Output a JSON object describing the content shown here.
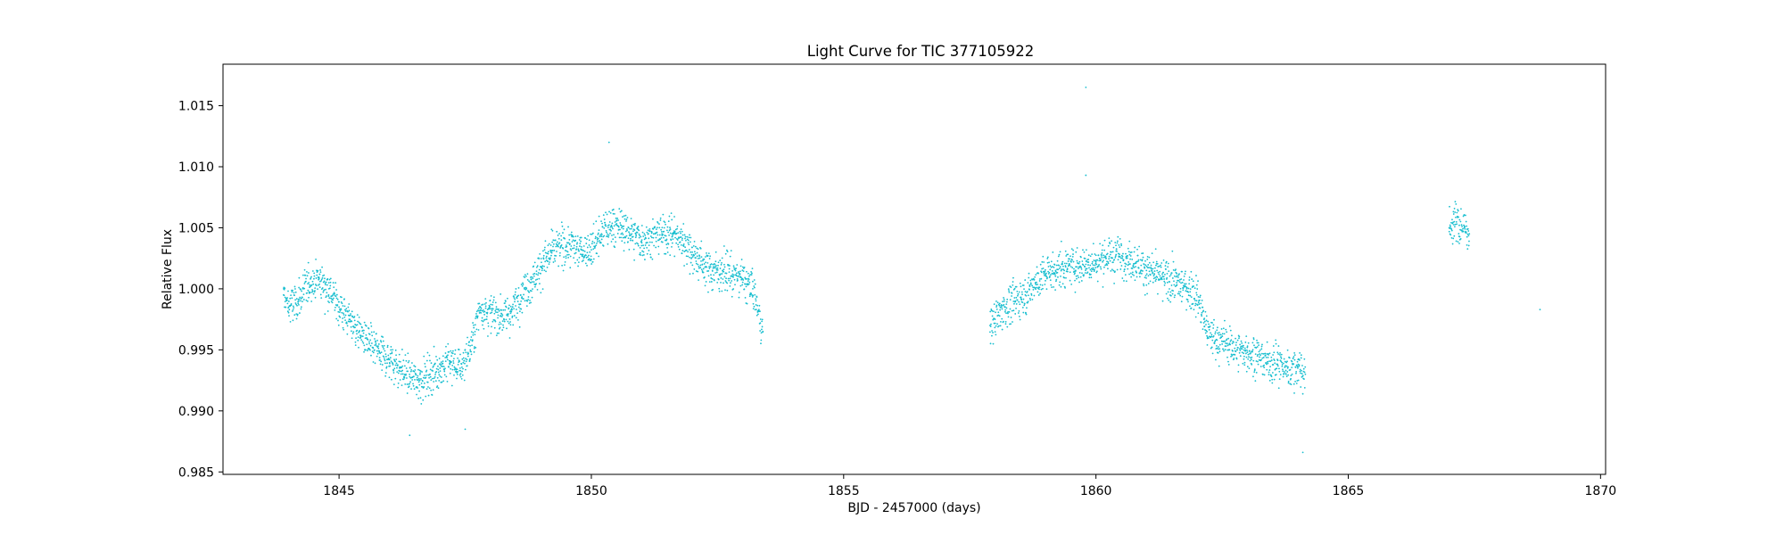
{
  "chart_data": {
    "type": "scatter",
    "title": "Light Curve for TIC 377105922",
    "xlabel": "BJD - 2457000 (days)",
    "ylabel": "Relative Flux",
    "xlim": [
      1842.7,
      1870.1
    ],
    "ylim": [
      0.9848,
      1.0184
    ],
    "xticks": [
      1845,
      1850,
      1855,
      1860,
      1865,
      1870
    ],
    "xtick_labels": [
      "1845",
      "1850",
      "1855",
      "1860",
      "1865",
      "1870"
    ],
    "yticks": [
      0.985,
      0.99,
      0.995,
      1.0,
      1.005,
      1.01,
      1.015
    ],
    "ytick_labels": [
      "0.985",
      "0.990",
      "0.995",
      "1.000",
      "1.005",
      "1.010",
      "1.015"
    ],
    "grid": false,
    "legend": "none",
    "marker_color": "#17becf",
    "series": [
      {
        "points": [
          [
            1843.9,
            0.9995
          ],
          [
            1844.0,
            0.9985
          ],
          [
            1844.2,
            0.999
          ],
          [
            1844.4,
            1.0005
          ],
          [
            1844.6,
            1.0008
          ],
          [
            1844.8,
            1.0
          ],
          [
            1845.0,
            0.9985
          ],
          [
            1845.2,
            0.9975
          ],
          [
            1845.4,
            0.9965
          ],
          [
            1845.6,
            0.9955
          ],
          [
            1845.8,
            0.9948
          ],
          [
            1846.0,
            0.9942
          ],
          [
            1846.2,
            0.9935
          ],
          [
            1846.4,
            0.9928
          ],
          [
            1846.6,
            0.9925
          ],
          [
            1846.8,
            0.993
          ],
          [
            1847.0,
            0.9935
          ],
          [
            1847.2,
            0.994
          ],
          [
            1847.4,
            0.9935
          ],
          [
            1847.6,
            0.995
          ],
          [
            1847.8,
            0.9985
          ],
          [
            1848.0,
            0.998
          ],
          [
            1848.2,
            0.9978
          ],
          [
            1848.4,
            0.998
          ],
          [
            1848.6,
            0.9995
          ],
          [
            1848.8,
            1.0005
          ],
          [
            1849.0,
            1.0018
          ],
          [
            1849.2,
            1.003
          ],
          [
            1849.4,
            1.0035
          ],
          [
            1849.6,
            1.0035
          ],
          [
            1849.8,
            1.0032
          ],
          [
            1850.0,
            1.0032
          ],
          [
            1850.2,
            1.0045
          ],
          [
            1850.4,
            1.0052
          ],
          [
            1850.6,
            1.005
          ],
          [
            1850.8,
            1.0045
          ],
          [
            1851.0,
            1.004
          ],
          [
            1851.2,
            1.0042
          ],
          [
            1851.4,
            1.0045
          ],
          [
            1851.6,
            1.0045
          ],
          [
            1851.8,
            1.004
          ],
          [
            1852.0,
            1.003
          ],
          [
            1852.2,
            1.002
          ],
          [
            1852.4,
            1.0015
          ],
          [
            1852.6,
            1.0015
          ],
          [
            1852.8,
            1.0012
          ],
          [
            1853.0,
            1.0008
          ],
          [
            1853.2,
            1.0
          ],
          [
            1853.4,
            0.9965
          ],
          [
            1857.9,
            0.997
          ],
          [
            1858.0,
            0.9975
          ],
          [
            1858.2,
            0.9985
          ],
          [
            1858.4,
            0.999
          ],
          [
            1858.6,
            0.9995
          ],
          [
            1858.8,
            1.0005
          ],
          [
            1859.0,
            1.0012
          ],
          [
            1859.2,
            1.0015
          ],
          [
            1859.4,
            1.0018
          ],
          [
            1859.6,
            1.0018
          ],
          [
            1859.8,
            1.002
          ],
          [
            1860.0,
            1.0022
          ],
          [
            1860.2,
            1.0025
          ],
          [
            1860.4,
            1.0028
          ],
          [
            1860.6,
            1.0025
          ],
          [
            1860.8,
            1.0022
          ],
          [
            1861.0,
            1.0015
          ],
          [
            1861.2,
            1.001
          ],
          [
            1861.4,
            1.0008
          ],
          [
            1861.6,
            1.0005
          ],
          [
            1861.8,
            1.0
          ],
          [
            1862.0,
            0.9995
          ],
          [
            1862.2,
            0.9965
          ],
          [
            1862.4,
            0.9958
          ],
          [
            1862.6,
            0.9955
          ],
          [
            1862.8,
            0.995
          ],
          [
            1863.0,
            0.9948
          ],
          [
            1863.2,
            0.9945
          ],
          [
            1863.4,
            0.994
          ],
          [
            1863.6,
            0.9938
          ],
          [
            1863.8,
            0.9935
          ],
          [
            1864.0,
            0.9935
          ],
          [
            1864.15,
            0.993
          ],
          [
            1867.0,
            1.005
          ],
          [
            1867.1,
            1.0055
          ],
          [
            1867.2,
            1.0052
          ],
          [
            1867.3,
            1.005
          ],
          [
            1867.4,
            1.0045
          ]
        ]
      }
    ],
    "outliers": [
      [
        1859.8,
        1.0165
      ],
      [
        1850.35,
        1.012
      ],
      [
        1859.8,
        1.0093
      ],
      [
        1868.8,
        0.9983
      ],
      [
        1864.1,
        0.9866
      ],
      [
        1846.4,
        0.988
      ],
      [
        1847.5,
        0.9885
      ]
    ]
  }
}
